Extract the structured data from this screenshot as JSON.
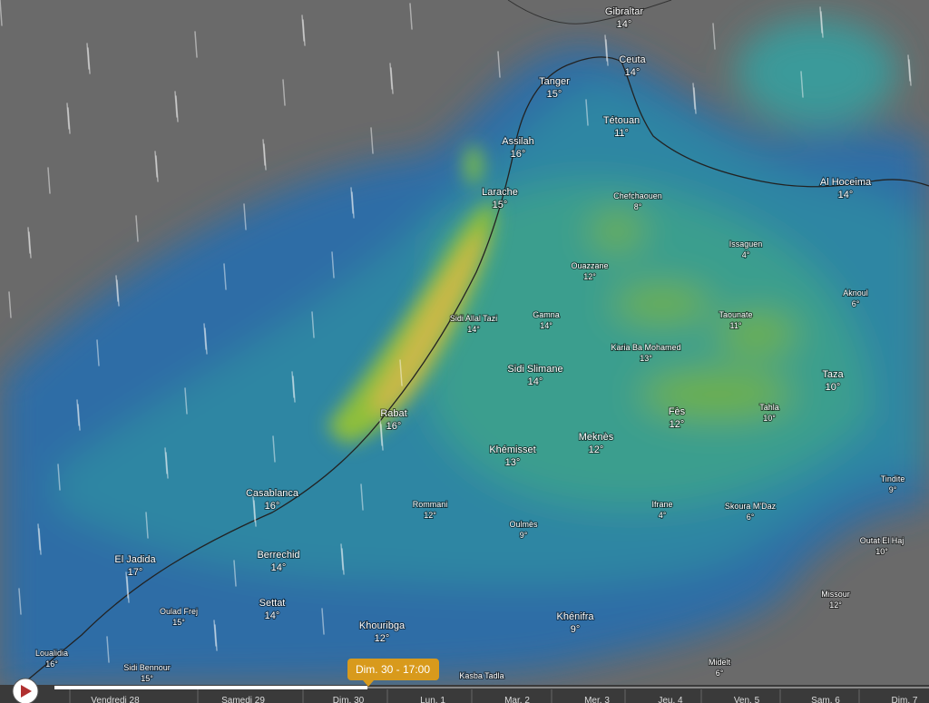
{
  "map": {
    "cities": [
      {
        "name": "Gibraltar",
        "temp": "14°"
      },
      {
        "name": "Ceuta",
        "temp": "14°"
      },
      {
        "name": "Tanger",
        "temp": "15°"
      },
      {
        "name": "Tétouan",
        "temp": "11°"
      },
      {
        "name": "Assilah",
        "temp": "16°"
      },
      {
        "name": "Larache",
        "temp": "15°"
      },
      {
        "name": "Al Hoceima",
        "temp": "14°"
      },
      {
        "name": "Chefchaouen",
        "temp": "8°"
      },
      {
        "name": "Issaguen",
        "temp": "4°"
      },
      {
        "name": "Ouazzane",
        "temp": "12°"
      },
      {
        "name": "Aknoul",
        "temp": "6°"
      },
      {
        "name": "Sidi Allal Tazi",
        "temp": "14°"
      },
      {
        "name": "Gamna",
        "temp": "14°"
      },
      {
        "name": "Taounate",
        "temp": "11°"
      },
      {
        "name": "Karia Ba Mohamed",
        "temp": "13°"
      },
      {
        "name": "Sidi Slimane",
        "temp": "14°"
      },
      {
        "name": "Taza",
        "temp": "10°"
      },
      {
        "name": "Rabat",
        "temp": "16°"
      },
      {
        "name": "Fès",
        "temp": "12°"
      },
      {
        "name": "Tahla",
        "temp": "10°"
      },
      {
        "name": "Meknès",
        "temp": "12°"
      },
      {
        "name": "Khémisset",
        "temp": "13°"
      },
      {
        "name": "Tindite",
        "temp": "9°"
      },
      {
        "name": "Casablanca",
        "temp": "16°"
      },
      {
        "name": "Rommani",
        "temp": "12°"
      },
      {
        "name": "Ifrane",
        "temp": "4°"
      },
      {
        "name": "Skoura M'Daz",
        "temp": "6°"
      },
      {
        "name": "Oulmès",
        "temp": "9°"
      },
      {
        "name": "Outat El Haj",
        "temp": "10°"
      },
      {
        "name": "El Jadida",
        "temp": "17°"
      },
      {
        "name": "Berrechid",
        "temp": "14°"
      },
      {
        "name": "Missour",
        "temp": "12°"
      },
      {
        "name": "Settat",
        "temp": "14°"
      },
      {
        "name": "Oulad Frej",
        "temp": "15°"
      },
      {
        "name": "Khénifra",
        "temp": "9°"
      },
      {
        "name": "Khouribga",
        "temp": "12°"
      },
      {
        "name": "Loualidia",
        "temp": "16°"
      },
      {
        "name": "Midelt",
        "temp": "6°"
      },
      {
        "name": "Sidi Bennour",
        "temp": "15°"
      },
      {
        "name": "Kasba Tadla",
        "temp": null
      }
    ]
  },
  "timeline": {
    "current": "Dim. 30 - 17:00",
    "days": [
      "Vendredi 28",
      "Samedi 29",
      "Dim. 30",
      "Lun. 1",
      "Mar. 2",
      "Mer. 3",
      "Jeu. 4",
      "Ven. 5",
      "Sam. 6",
      "Dim. 7"
    ]
  }
}
